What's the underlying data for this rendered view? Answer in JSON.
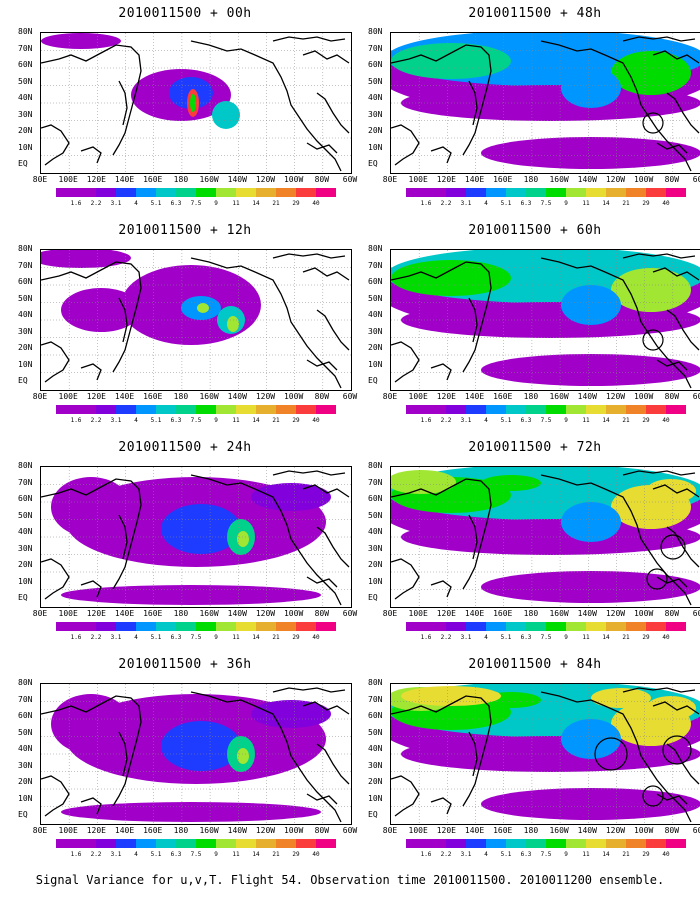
{
  "panels": [
    {
      "title": "2010011500 + 00h",
      "col": 0,
      "row": 0,
      "level": 0
    },
    {
      "title": "2010011500 + 48h",
      "col": 1,
      "row": 0,
      "level": 3
    },
    {
      "title": "2010011500 + 12h",
      "col": 0,
      "row": 1,
      "level": 1
    },
    {
      "title": "2010011500 + 60h",
      "col": 1,
      "row": 1,
      "level": 4
    },
    {
      "title": "2010011500 + 24h",
      "col": 0,
      "row": 2,
      "level": 2
    },
    {
      "title": "2010011500 + 72h",
      "col": 1,
      "row": 2,
      "level": 5
    },
    {
      "title": "2010011500 + 36h",
      "col": 0,
      "row": 3,
      "level": 2
    },
    {
      "title": "2010011500 + 84h",
      "col": 1,
      "row": 3,
      "level": 6
    }
  ],
  "lat_labels": [
    "80N",
    "70N",
    "60N",
    "50N",
    "40N",
    "30N",
    "20N",
    "10N",
    "EQ"
  ],
  "lon_labels": [
    "80E",
    "100E",
    "120E",
    "140E",
    "160E",
    "180",
    "160W",
    "140W",
    "120W",
    "100W",
    "80W",
    "60W"
  ],
  "colorbar": {
    "labels": [
      "1.6",
      "2.2",
      "3.1",
      "4",
      "5.1",
      "6.3",
      "7.5",
      "9",
      "11",
      "14",
      "21",
      "29",
      "40"
    ],
    "colors": [
      "#a000c8",
      "#8200dc",
      "#1e3cff",
      "#0096ff",
      "#00c8c8",
      "#00d28c",
      "#00dc00",
      "#a0e632",
      "#e6dc32",
      "#e6af2d",
      "#f08228",
      "#fa3c3c",
      "#f00082"
    ]
  },
  "caption": "Signal Variance for u,v,T. Flight 54. Observation time 2010011500. 2010011200 ensemble."
}
